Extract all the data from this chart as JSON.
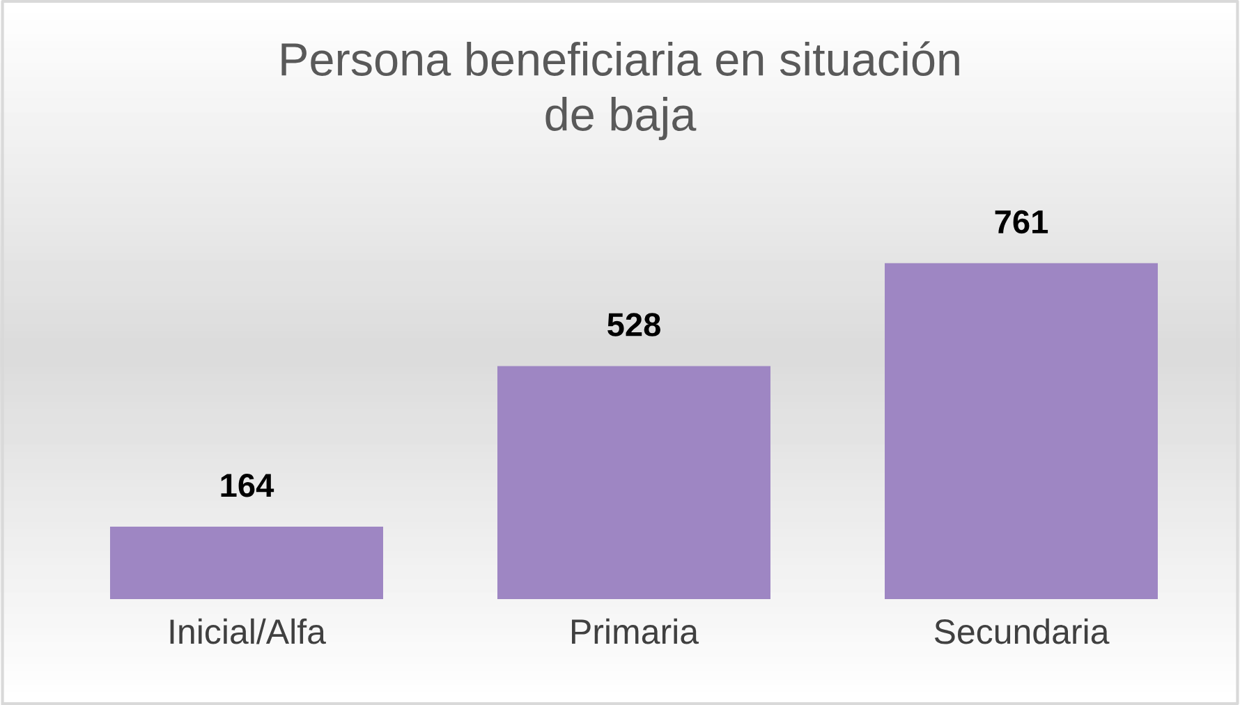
{
  "chart_data": {
    "type": "bar",
    "title": "Persona beneficiaria en situación de baja",
    "categories": [
      "Inicial/Alfa",
      "Primaria",
      "Secundaria"
    ],
    "values": [
      164,
      528,
      761
    ],
    "color": "#9e86c3",
    "data_labels": true
  }
}
